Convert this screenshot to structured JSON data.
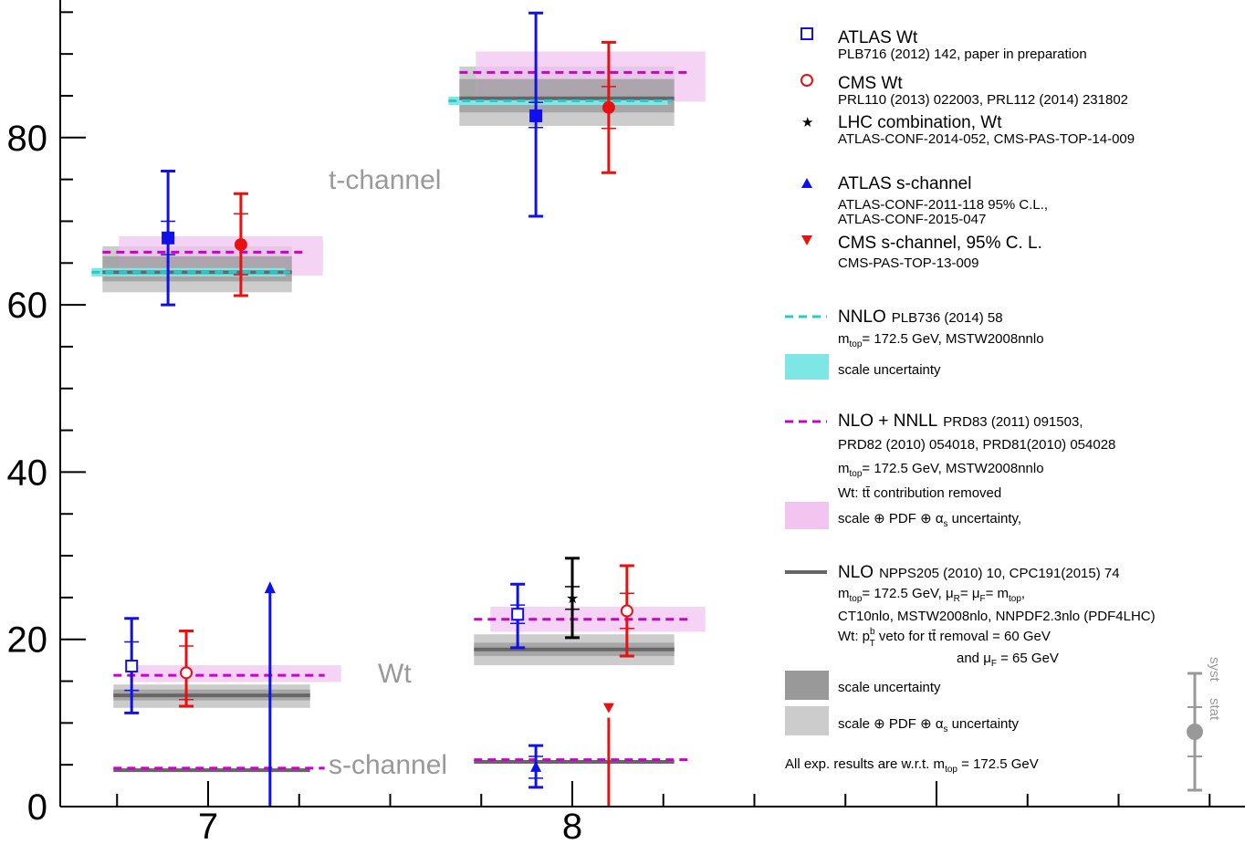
{
  "colors": {
    "atlas": "#1010e8",
    "cms": "#e81010",
    "lhc": "#000000",
    "nnlo": "#22cccc",
    "nnll_line": "#cc00cc",
    "nnll_band": "#f2c4f0",
    "nlo_line": "#666666",
    "scale_band": "#999999",
    "pdf_band": "#cccccc",
    "annotation": "#999999"
  },
  "chart_data": {
    "type": "scatter",
    "title": "",
    "xlabel": "",
    "ylabel": "",
    "xlim": [
      6.6,
      9.85
    ],
    "ylim": [
      0,
      96.5
    ],
    "x_ticks": [
      7,
      8
    ],
    "x_tick_labels": [
      "7",
      "8"
    ],
    "y_ticks": [
      0,
      20,
      40,
      60,
      80
    ],
    "y_tick_labels": [
      "0",
      "20",
      "40",
      "60",
      "80"
    ],
    "grid": false,
    "legend_position": "right",
    "annotations": {
      "t_channel": "t-channel",
      "wt": "Wt",
      "s_channel": "s-channel"
    },
    "theory": [
      {
        "channel": "t-channel",
        "sqrt_s": 7,
        "x_range": [
          6.68,
          7.25
        ],
        "nnlo": 63.9,
        "nnlo_scale": [
          63.4,
          64.4
        ],
        "nlo": 63.9,
        "nlo_scale": [
          62.8,
          65.8
        ],
        "nlo_pdf": [
          61.5,
          67.0
        ],
        "nnll": 66.3,
        "nnll_band": [
          63.5,
          68.2
        ]
      },
      {
        "channel": "t-channel",
        "sqrt_s": 8,
        "x_range": [
          7.66,
          8.3
        ],
        "nnlo": 84.4,
        "nnlo_scale": [
          83.9,
          84.9
        ],
        "nlo": 84.7,
        "nlo_scale": [
          83.0,
          87.0
        ],
        "nlo_pdf": [
          81.4,
          88.5
        ],
        "nnll": 87.8,
        "nnll_band": [
          84.3,
          90.3
        ]
      },
      {
        "channel": "Wt",
        "sqrt_s": 7,
        "x_range": [
          6.71,
          7.3
        ],
        "nlo": 13.3,
        "nlo_scale": [
          12.7,
          14.0
        ],
        "nlo_pdf": [
          11.8,
          14.6
        ],
        "nnll": 15.7,
        "nnll_band": [
          14.9,
          16.9
        ]
      },
      {
        "channel": "Wt",
        "sqrt_s": 8,
        "x_range": [
          7.7,
          8.3
        ],
        "nlo": 18.8,
        "nlo_scale": [
          18.0,
          19.6
        ],
        "nlo_pdf": [
          16.9,
          20.6
        ],
        "nnll": 22.4,
        "nnll_band": [
          20.9,
          23.9
        ]
      },
      {
        "channel": "s-channel",
        "sqrt_s": 7,
        "x_range": [
          6.71,
          7.3
        ],
        "nlo": 4.35,
        "nnll": 4.6
      },
      {
        "channel": "s-channel",
        "sqrt_s": 8,
        "x_range": [
          7.7,
          8.3
        ],
        "nlo": 5.35,
        "nnll": 5.6
      }
    ],
    "measurements": [
      {
        "exp": "ATLAS",
        "channel": "t-channel",
        "sqrt_s": 7,
        "x": 6.89,
        "y": 68.0,
        "stat": [
          66.0,
          70.0
        ],
        "total": [
          60.0,
          76.0
        ]
      },
      {
        "exp": "CMS",
        "channel": "t-channel",
        "sqrt_s": 7,
        "x": 7.09,
        "y": 67.2,
        "stat": [
          63.6,
          70.9
        ],
        "total": [
          61.1,
          73.3
        ]
      },
      {
        "exp": "ATLAS",
        "channel": "t-channel",
        "sqrt_s": 8,
        "x": 7.9,
        "y": 82.6,
        "stat": [
          81.2,
          84.2
        ],
        "total": [
          70.6,
          94.9
        ]
      },
      {
        "exp": "CMS",
        "channel": "t-channel",
        "sqrt_s": 8,
        "x": 8.1,
        "y": 83.6,
        "stat": [
          81.1,
          86.1
        ],
        "total": [
          75.8,
          91.4
        ]
      },
      {
        "exp": "ATLAS",
        "channel": "Wt",
        "sqrt_s": 7,
        "x": 6.79,
        "y": 16.8,
        "stat": [
          13.9,
          19.7
        ],
        "total": [
          11.2,
          22.5
        ]
      },
      {
        "exp": "CMS",
        "channel": "Wt",
        "sqrt_s": 7,
        "x": 6.94,
        "y": 16.0,
        "stat": [
          12.8,
          19.2
        ],
        "total": [
          12.0,
          21.0
        ]
      },
      {
        "exp": "ATLAS",
        "channel": "Wt",
        "sqrt_s": 8,
        "x": 7.85,
        "y": 23.0,
        "stat": [
          21.9,
          24.1
        ],
        "total": [
          19.0,
          26.6
        ]
      },
      {
        "exp": "LHC",
        "channel": "Wt",
        "sqrt_s": 8,
        "x": 8.0,
        "y": 25.0,
        "stat": [
          23.6,
          26.3
        ],
        "total": [
          20.2,
          29.7
        ]
      },
      {
        "exp": "CMS",
        "channel": "Wt",
        "sqrt_s": 8,
        "x": 8.15,
        "y": 23.4,
        "stat": [
          21.3,
          25.5
        ],
        "total": [
          18.0,
          28.8
        ]
      },
      {
        "exp": "ATLAS",
        "channel": "s-channel",
        "sqrt_s": 7,
        "type": "limit",
        "x": 7.17,
        "y": 26.5
      },
      {
        "exp": "ATLAS",
        "channel": "s-channel",
        "sqrt_s": 8,
        "x": 7.9,
        "y": 4.7,
        "stat": [
          3.4,
          6.0
        ],
        "total": [
          2.3,
          7.3
        ]
      },
      {
        "exp": "CMS",
        "channel": "s-channel",
        "sqrt_s": 8,
        "type": "limit",
        "x": 8.1,
        "y": 11.5
      }
    ],
    "legend": {
      "atlas_wt": {
        "title": "ATLAS Wt",
        "sub": "PLB716 (2012) 142, paper in preparation"
      },
      "cms_wt": {
        "title": "CMS Wt",
        "sub": "PRL110 (2013) 022003, PRL112 (2014) 231802"
      },
      "lhc_wt": {
        "title": "LHC combination,  Wt",
        "sub": "ATLAS-CONF-2014-052, CMS-PAS-TOP-14-009"
      },
      "atlas_s": {
        "title": "ATLAS s-channel",
        "sub1": "ATLAS-CONF-2011-118 95% C.L.,",
        "sub2": "ATLAS-CONF-2015-047"
      },
      "cms_s": {
        "title": "CMS s-channel, 95% C. L.",
        "sub": "CMS-PAS-TOP-13-009"
      },
      "nnlo": {
        "title": "NNLO",
        "ref": "PLB736 (2014) 58",
        "mtop": "m",
        "mtop_sub": "top",
        "mtop_rest": "= 172.5 GeV, MSTW2008nnlo",
        "band": "scale uncertainty"
      },
      "nnll": {
        "title": "NLO + NNLL",
        "ref1": "PRD83 (2011) 091503,",
        "ref2": "PRD82 (2010) 054018, PRD81(2010) 054028",
        "mtop_rest": "= 172.5 GeV, MSTW2008nnlo",
        "wt_note": "Wt: tt̄ contribution removed",
        "band": "scale ⊕ PDF ⊕ α",
        "band_sub": "s",
        "band_rest": " uncertainty,"
      },
      "nlo": {
        "title": "NLO",
        "ref": "NPPS205 (2010) 10, CPC191(2015) 74",
        "line1_rest": "= 172.5 GeV, μ",
        "mu_r": "R",
        "mu_eq": "= μ",
        "mu_f": "F",
        "mu_rest": "= m",
        "line2": "CT10nlo, MSTW2008nlo, NNPDF2.3nlo (PDF4LHC)",
        "line3a": "Wt: p",
        "line3_sup": "b",
        "line3_sub": "T",
        "line3b": " veto for tt̄ removal = 60 GeV",
        "line4": "and μ",
        "line4_sub": "F",
        "line4_rest": " = 65 GeV",
        "scale_band": "scale uncertainty",
        "pdf_band": "scale ⊕ PDF ⊕ α",
        "pdf_sub": "s",
        "pdf_rest": " uncertainty"
      },
      "note": {
        "text": "All exp. results are w.r.t. m",
        "sub": "top",
        "rest": " = 172.5 GeV"
      },
      "key": {
        "syst": "syst",
        "stat": "stat"
      }
    }
  }
}
